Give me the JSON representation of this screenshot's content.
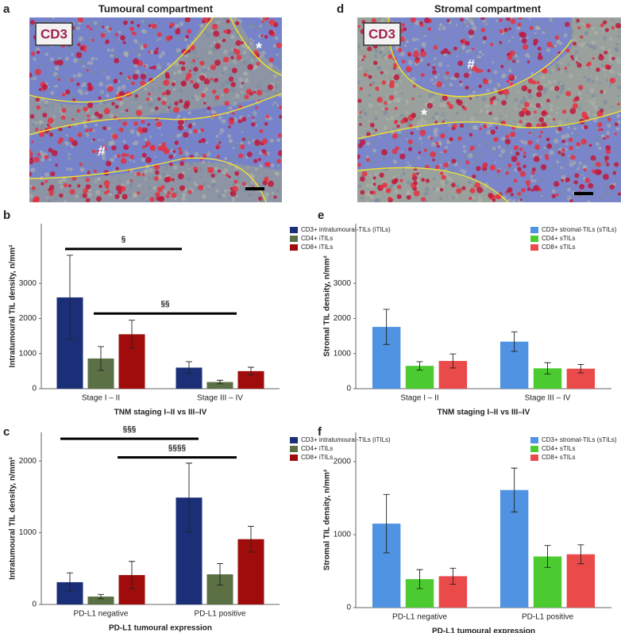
{
  "image_panels": [
    {
      "letter": "a",
      "title": "Tumoural compartment",
      "stain": "CD3",
      "markers": [
        "*",
        "#"
      ]
    },
    {
      "letter": "d",
      "title": "Stromal compartment",
      "stain": "CD3",
      "markers": [
        "#",
        "*"
      ]
    }
  ],
  "chart_data": [
    {
      "panel": "b",
      "type": "bar",
      "y_label": "Intratumoural TIL density, n/mm²",
      "x_label": "TNM staging I–II vs III–IV",
      "categories": [
        "Stage I – II",
        "Stage III – IV"
      ],
      "series": [
        {
          "name": "CD3+ intratumoural-TILs (iTILs)",
          "color": "#1b2f78",
          "values": [
            2600,
            600
          ],
          "errors": [
            1200,
            170
          ]
        },
        {
          "name": "CD4+ iTILs",
          "color": "#5b7044",
          "values": [
            860,
            190
          ],
          "errors": [
            340,
            50
          ]
        },
        {
          "name": "CD8+ iTILs",
          "color": "#a00c0c",
          "values": [
            1550,
            500
          ],
          "errors": [
            400,
            110
          ]
        }
      ],
      "ylim": [
        0,
        4700
      ],
      "yticks": [
        0,
        1000,
        2000,
        3000
      ],
      "legend": "upper right",
      "annotations": [
        {
          "text": "§",
          "y": 3980
        },
        {
          "text": "§§",
          "y": 2140
        }
      ]
    },
    {
      "panel": "c",
      "type": "bar",
      "y_label": "Intratumoural TIL density, n/mm²",
      "x_label": "PD-L1 tumoural expression",
      "categories": [
        "PD-L1 negative",
        "PD-L1 positive"
      ],
      "series": [
        {
          "name": "CD3+ intratumoural-TILs (iTILs)",
          "color": "#1b2f78",
          "values": [
            310,
            1490
          ],
          "errors": [
            130,
            480
          ]
        },
        {
          "name": "CD4+ iTILs",
          "color": "#5b7044",
          "values": [
            110,
            420
          ],
          "errors": [
            30,
            150
          ]
        },
        {
          "name": "CD8+ iTILs",
          "color": "#a00c0c",
          "values": [
            410,
            910
          ],
          "errors": [
            190,
            180
          ]
        }
      ],
      "ylim": [
        0,
        2400
      ],
      "yticks": [
        0,
        1000,
        2000
      ],
      "legend": "upper right",
      "annotations": [
        {
          "text": "§§§",
          "y": 2310
        },
        {
          "text": "§§§§",
          "y": 2050
        }
      ]
    },
    {
      "panel": "e",
      "type": "bar",
      "y_label": "Stromal TIL density, n/mm²",
      "x_label": "TNM staging I–II vs III–IV",
      "categories": [
        "Stage I – II",
        "Stage III – IV"
      ],
      "series": [
        {
          "name": "CD3+ stromal-TILs (sTILs)",
          "color": "#4f93e2",
          "values": [
            1760,
            1340
          ],
          "errors": [
            500,
            280
          ]
        },
        {
          "name": "CD4+ sTILs",
          "color": "#4ccb30",
          "values": [
            650,
            580
          ],
          "errors": [
            120,
            160
          ]
        },
        {
          "name": "CD8+ sTILs",
          "color": "#ea4a4a",
          "values": [
            790,
            570
          ],
          "errors": [
            200,
            120
          ]
        }
      ],
      "ylim": [
        0,
        4700
      ],
      "yticks": [
        0,
        1000,
        2000,
        3000
      ],
      "legend": "upper right"
    },
    {
      "panel": "f",
      "type": "bar",
      "y_label": "Stromal TIL density, n/mm²",
      "x_label": "PD-L1 tumoural expression",
      "categories": [
        "PD-L1 negative",
        "PD-L1 positive"
      ],
      "series": [
        {
          "name": "CD3+ stromal-TILs (sTILs)",
          "color": "#4f93e2",
          "values": [
            1150,
            1610
          ],
          "errors": [
            400,
            300
          ]
        },
        {
          "name": "CD4+ sTILs",
          "color": "#4ccb30",
          "values": [
            390,
            700
          ],
          "errors": [
            130,
            150
          ]
        },
        {
          "name": "CD8+ sTILs",
          "color": "#ea4a4a",
          "values": [
            430,
            730
          ],
          "errors": [
            110,
            130
          ]
        }
      ],
      "ylim": [
        0,
        2400
      ],
      "yticks": [
        0,
        1000,
        2000
      ],
      "legend": "upper right"
    }
  ]
}
